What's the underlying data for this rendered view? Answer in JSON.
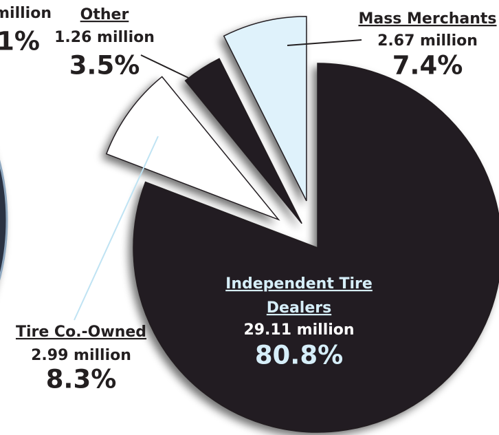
{
  "chart_data": {
    "type": "pie",
    "categories": [
      "Independent Tire Dealers",
      "Tire Co.-Owned",
      "Other",
      "Mass Merchants"
    ],
    "values": [
      80.8,
      8.3,
      3.5,
      7.4
    ],
    "value_labels": [
      "80.8%",
      "8.3%",
      "3.5%",
      "7.4%"
    ],
    "amount_labels": [
      "29.11 million",
      "2.99 million",
      "1.26 million",
      "2.67 million"
    ],
    "colors": [
      "#231f20",
      "#ffffff",
      "#231f20",
      "#dff2fb"
    ]
  },
  "clipped_text": [
    "million",
    "1%"
  ]
}
